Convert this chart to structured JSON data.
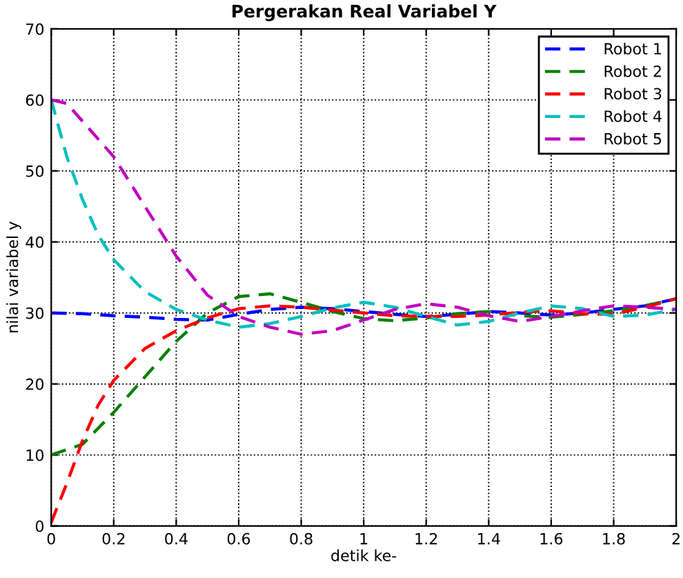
{
  "chart_data": {
    "type": "line",
    "title": "Pergerakan Real Variabel Y",
    "xlabel": "detik ke-",
    "ylabel": "nilai variabel y",
    "xlim": [
      0,
      2
    ],
    "ylim": [
      0,
      70
    ],
    "xticks": [
      0,
      0.2,
      0.4,
      0.6,
      0.8,
      1,
      1.2,
      1.4,
      1.6,
      1.8,
      2
    ],
    "yticks": [
      0,
      10,
      20,
      30,
      40,
      50,
      60,
      70
    ],
    "grid": true,
    "legend": "top right",
    "line_style": "dashed",
    "series": [
      {
        "name": "Robot 1",
        "color": "#0000ff",
        "x": [
          0,
          0.1,
          0.2,
          0.3,
          0.4,
          0.5,
          0.6,
          0.7,
          0.8,
          0.9,
          1,
          1.1,
          1.2,
          1.3,
          1.4,
          1.5,
          1.6,
          1.7,
          1.8,
          1.9,
          2
        ],
        "values": [
          30,
          29.9,
          29.6,
          29.4,
          29.1,
          29,
          29.8,
          30.5,
          30.8,
          30.6,
          30.2,
          29.8,
          29.5,
          29.8,
          30.2,
          30,
          29.7,
          30,
          30.5,
          31,
          32
        ]
      },
      {
        "name": "Robot 2",
        "color": "#008000",
        "x": [
          0,
          0.1,
          0.2,
          0.3,
          0.4,
          0.5,
          0.6,
          0.7,
          0.8,
          0.9,
          1,
          1.1,
          1.2,
          1.3,
          1.4,
          1.5,
          1.6,
          1.7,
          1.8,
          1.9,
          2
        ],
        "values": [
          10,
          11.5,
          16,
          21,
          26,
          30,
          32.3,
          32.7,
          31.5,
          30.2,
          29.2,
          28.9,
          29.3,
          29.9,
          30.2,
          29.6,
          29.4,
          29.8,
          30.3,
          31,
          32
        ]
      },
      {
        "name": "Robot 3",
        "color": "#ff0000",
        "x": [
          0,
          0.05,
          0.1,
          0.15,
          0.2,
          0.3,
          0.4,
          0.5,
          0.6,
          0.7,
          0.8,
          0.9,
          1,
          1.1,
          1.2,
          1.3,
          1.4,
          1.5,
          1.6,
          1.7,
          1.8,
          1.9,
          2
        ],
        "values": [
          0.5,
          6,
          12,
          17,
          20.5,
          25,
          27.5,
          29.3,
          30.6,
          31,
          30.8,
          30.4,
          30,
          29.6,
          29.5,
          29.5,
          29.7,
          30.1,
          30.3,
          29.9,
          29.8,
          30.8,
          32
        ]
      },
      {
        "name": "Robot 4",
        "color": "#00bfbf",
        "x": [
          0,
          0.05,
          0.1,
          0.15,
          0.2,
          0.3,
          0.4,
          0.5,
          0.6,
          0.7,
          0.8,
          0.9,
          1,
          1.1,
          1.2,
          1.3,
          1.4,
          1.5,
          1.6,
          1.7,
          1.8,
          1.9,
          2
        ],
        "values": [
          60,
          52,
          46,
          41,
          37.5,
          33,
          30.5,
          29,
          28,
          28.5,
          29.5,
          30.7,
          31.5,
          30.8,
          29.5,
          28.3,
          28.8,
          30,
          31,
          30.6,
          29.5,
          29.7,
          30.5
        ]
      },
      {
        "name": "Robot 5",
        "color": "#bf00bf",
        "x": [
          0,
          0.05,
          0.1,
          0.2,
          0.3,
          0.4,
          0.5,
          0.6,
          0.7,
          0.8,
          0.9,
          1,
          1.1,
          1.2,
          1.3,
          1.4,
          1.5,
          1.6,
          1.7,
          1.8,
          1.9,
          2
        ],
        "values": [
          60,
          59.5,
          57,
          52,
          45,
          38,
          32.5,
          29.5,
          28,
          27,
          27.5,
          29,
          30.5,
          31.3,
          30.8,
          29.6,
          28.8,
          29.5,
          30.3,
          31,
          30.8,
          30.5
        ]
      }
    ]
  }
}
